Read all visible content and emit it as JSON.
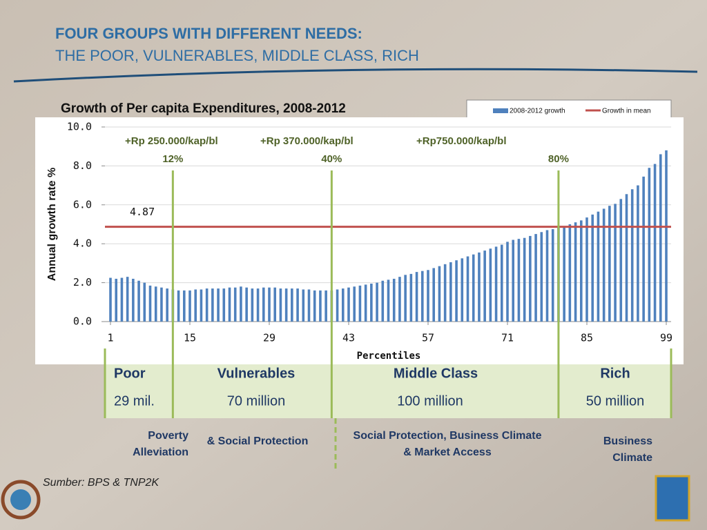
{
  "slide": {
    "title": "FOUR GROUPS WITH DIFFERENT NEEDS:",
    "subtitle": "THE POOR, VULNERABLES, MIDDLE CLASS, RICH",
    "source": "Sumber: BPS & TNP2K"
  },
  "chart_data": {
    "type": "bar",
    "title": "Growth of Per capita Expenditures, 2008-2012",
    "x_label": "Percentiles",
    "y_label": "Annual growth rate %",
    "x": [
      1,
      2,
      3,
      4,
      5,
      6,
      7,
      8,
      9,
      10,
      11,
      12,
      13,
      14,
      15,
      16,
      17,
      18,
      19,
      20,
      21,
      22,
      23,
      24,
      25,
      26,
      27,
      28,
      29,
      30,
      31,
      32,
      33,
      34,
      35,
      36,
      37,
      38,
      39,
      40,
      41,
      42,
      43,
      44,
      45,
      46,
      47,
      48,
      49,
      50,
      51,
      52,
      53,
      54,
      55,
      56,
      57,
      58,
      59,
      60,
      61,
      62,
      63,
      64,
      65,
      66,
      67,
      68,
      69,
      70,
      71,
      72,
      73,
      74,
      75,
      76,
      77,
      78,
      79,
      80,
      81,
      82,
      83,
      84,
      85,
      86,
      87,
      88,
      89,
      90,
      91,
      92,
      93,
      94,
      95,
      96,
      97,
      98,
      99
    ],
    "series": [
      {
        "name": "2008-2012 growth",
        "color": "#4f81bd",
        "values": [
          2.25,
          2.2,
          2.25,
          2.3,
          2.2,
          2.1,
          2.0,
          1.85,
          1.8,
          1.75,
          1.7,
          1.65,
          1.6,
          1.6,
          1.6,
          1.65,
          1.65,
          1.7,
          1.7,
          1.7,
          1.7,
          1.75,
          1.75,
          1.8,
          1.75,
          1.7,
          1.7,
          1.75,
          1.75,
          1.75,
          1.7,
          1.7,
          1.7,
          1.7,
          1.65,
          1.65,
          1.6,
          1.6,
          1.6,
          1.6,
          1.65,
          1.7,
          1.75,
          1.8,
          1.85,
          1.9,
          1.95,
          2.0,
          2.1,
          2.15,
          2.2,
          2.3,
          2.4,
          2.45,
          2.55,
          2.6,
          2.65,
          2.75,
          2.85,
          2.95,
          3.05,
          3.15,
          3.25,
          3.35,
          3.45,
          3.55,
          3.65,
          3.75,
          3.85,
          3.95,
          4.1,
          4.2,
          4.25,
          4.3,
          4.4,
          4.5,
          4.6,
          4.7,
          4.75,
          4.85,
          4.9,
          5.0,
          5.1,
          5.2,
          5.35,
          5.5,
          5.65,
          5.8,
          5.95,
          6.05,
          6.3,
          6.55,
          6.8,
          7.0,
          7.45,
          7.9,
          8.1,
          8.6,
          8.8
        ]
      }
    ],
    "mean": {
      "name": "Growth in mean",
      "color": "#c0504d",
      "value": 4.87
    },
    "xlim": [
      1,
      99
    ],
    "xticks": [
      1,
      15,
      29,
      43,
      57,
      71,
      85,
      99
    ],
    "ylim": [
      0,
      10
    ],
    "yticks": [
      {
        "value": 0,
        "label": "0.0"
      },
      {
        "value": 2,
        "label": "2.0"
      },
      {
        "value": 4,
        "label": "4.0"
      },
      {
        "value": 6,
        "label": "6.0"
      },
      {
        "value": 8,
        "label": "8.0"
      },
      {
        "value": 10,
        "label": "10.0"
      }
    ],
    "grid": true,
    "markers": [
      {
        "x": 12,
        "label": "12%",
        "text": "+Rp 250.000/kap/bl"
      },
      {
        "x": 40,
        "label": "40%",
        "text": "+Rp 370.000/kap/bl"
      },
      {
        "x": 80,
        "label": "80%",
        "text": "+Rp750.000/kap/bl"
      }
    ]
  },
  "groups": [
    {
      "name": "Poor",
      "size": "29 mil."
    },
    {
      "name": "Vulnerables",
      "size": "70 million"
    },
    {
      "name": "Middle Class",
      "size": "100 million"
    },
    {
      "name": "Rich",
      "size": "50 million"
    }
  ],
  "policies": [
    [
      "Poverty",
      "Alleviation"
    ],
    [
      "& Social Protection"
    ],
    [
      "Social Protection, Business Climate",
      "& Market Access"
    ],
    [
      "Business",
      "Climate"
    ]
  ]
}
